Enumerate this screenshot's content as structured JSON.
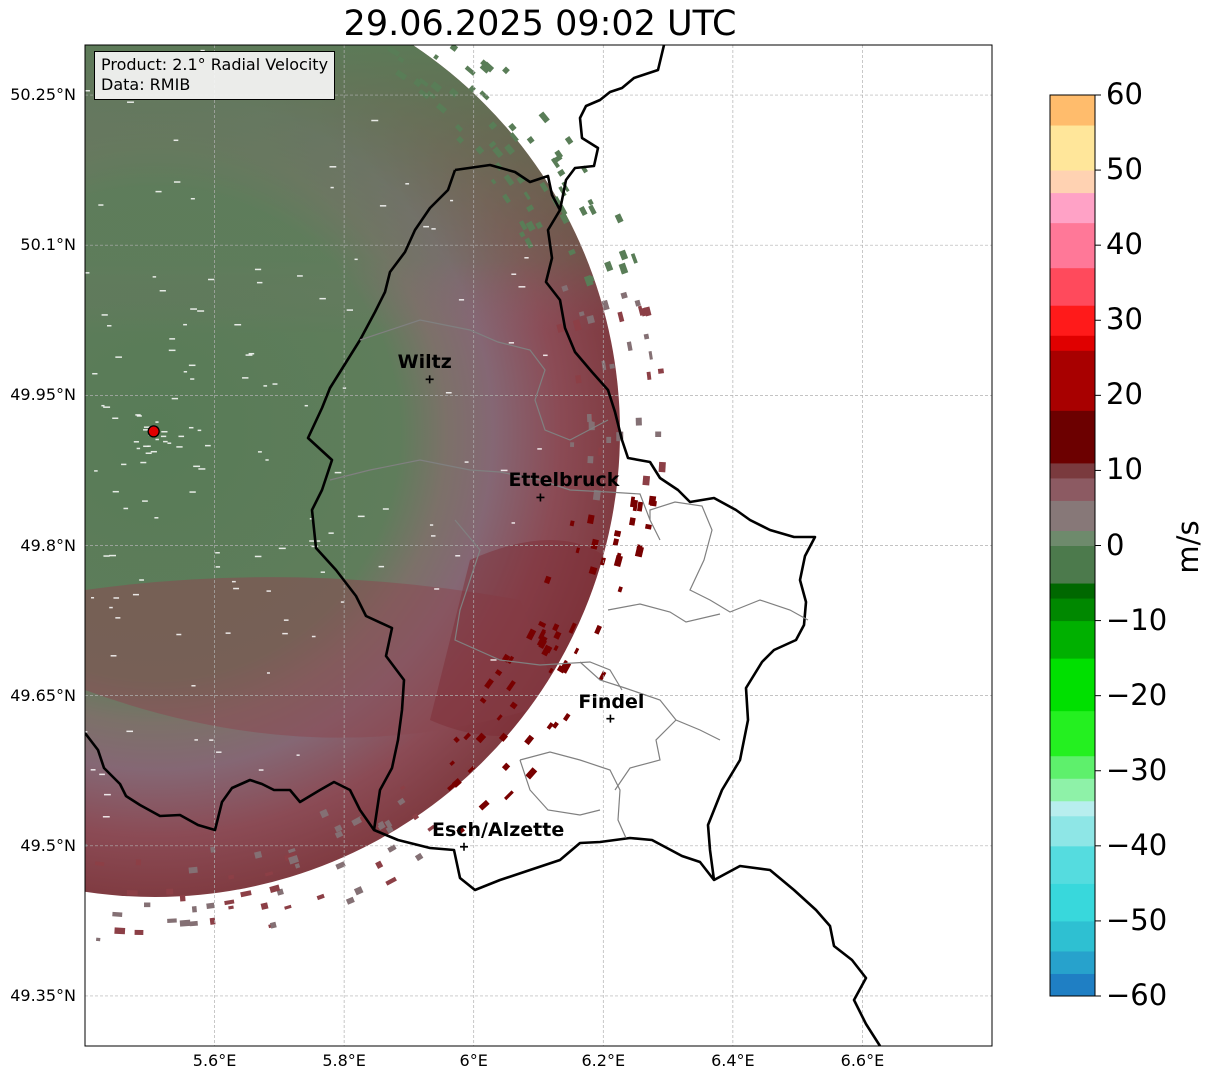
{
  "title": "29.06.2025 09:02 UTC",
  "info": {
    "product": "Product: 2.1° Radial Velocity",
    "data": "Data: RMIB"
  },
  "cities": [
    {
      "name": "Wiltz",
      "lon": 5.932,
      "lat": 49.966
    },
    {
      "name": "Ettelbruck",
      "lon": 6.103,
      "lat": 49.848
    },
    {
      "name": "Findel",
      "lon": 6.211,
      "lat": 49.627
    },
    {
      "name": "Esch/Alzette",
      "lon": 5.985,
      "lat": 49.499
    }
  ],
  "radar_site": {
    "lon": 5.506,
    "lat": 49.914
  },
  "lat_ticks": [
    "50.25°N",
    "50.1°N",
    "49.95°N",
    "49.8°N",
    "49.65°N",
    "49.5°N",
    "49.35°N"
  ],
  "lat_values": [
    50.25,
    50.1,
    49.95,
    49.8,
    49.65,
    49.5,
    49.35
  ],
  "lon_ticks": [
    "5.6°E",
    "5.8°E",
    "6°E",
    "6.2°E",
    "6.4°E",
    "6.6°E"
  ],
  "lon_values": [
    5.6,
    5.8,
    6.0,
    6.2,
    6.4,
    6.6
  ],
  "extent": {
    "lon_min": 5.4,
    "lon_max": 6.8,
    "lat_min": 49.3,
    "lat_max": 50.3
  },
  "colorbar": {
    "unit": "m/s",
    "ticks": [
      "60",
      "50",
      "40",
      "30",
      "20",
      "10",
      "0",
      "−10",
      "−20",
      "−30",
      "−40",
      "−50",
      "−60"
    ],
    "tick_values": [
      60,
      50,
      40,
      30,
      20,
      10,
      0,
      -10,
      -20,
      -30,
      -40,
      -50,
      -60
    ],
    "min": -60,
    "max": 60,
    "stops": [
      {
        "v": -60,
        "c": "#1f7fc4"
      },
      {
        "v": -57,
        "c": "#27a2cc"
      },
      {
        "v": -54,
        "c": "#2ec0d2"
      },
      {
        "v": -50,
        "c": "#38d8dc"
      },
      {
        "v": -45,
        "c": "#55dcdf"
      },
      {
        "v": -40,
        "c": "#8ee6e6"
      },
      {
        "v": -36,
        "c": "#b8eeee"
      },
      {
        "v": -34,
        "c": "#8ef2a8"
      },
      {
        "v": -31,
        "c": "#5ef06c"
      },
      {
        "v": -28,
        "c": "#24f020"
      },
      {
        "v": -22,
        "c": "#00e000"
      },
      {
        "v": -15,
        "c": "#00b000"
      },
      {
        "v": -10,
        "c": "#008800"
      },
      {
        "v": -7,
        "c": "#006800"
      },
      {
        "v": -5,
        "c": "#4c7a4c"
      },
      {
        "v": 0,
        "c": "#6e8a6c"
      },
      {
        "v": 2,
        "c": "#877878"
      },
      {
        "v": 6,
        "c": "#8c5a62"
      },
      {
        "v": 9,
        "c": "#7a3a3e"
      },
      {
        "v": 11,
        "c": "#6c0000"
      },
      {
        "v": 18,
        "c": "#a80000"
      },
      {
        "v": 26,
        "c": "#e00000"
      },
      {
        "v": 28,
        "c": "#ff1a1a"
      },
      {
        "v": 32,
        "c": "#ff4a5c"
      },
      {
        "v": 37,
        "c": "#ff7898"
      },
      {
        "v": 43,
        "c": "#ffa2c6"
      },
      {
        "v": 47,
        "c": "#ffd2b2"
      },
      {
        "v": 50,
        "c": "#ffe69a"
      },
      {
        "v": 56,
        "c": "#ffbc6c"
      },
      {
        "v": 60,
        "c": "#ff9a52"
      }
    ]
  },
  "colors": {
    "inbound": "#597d57",
    "neutral": "#847074",
    "outbound": "#8c3f46",
    "outbound_strong": "#780000",
    "site_marker": "#e00000"
  }
}
